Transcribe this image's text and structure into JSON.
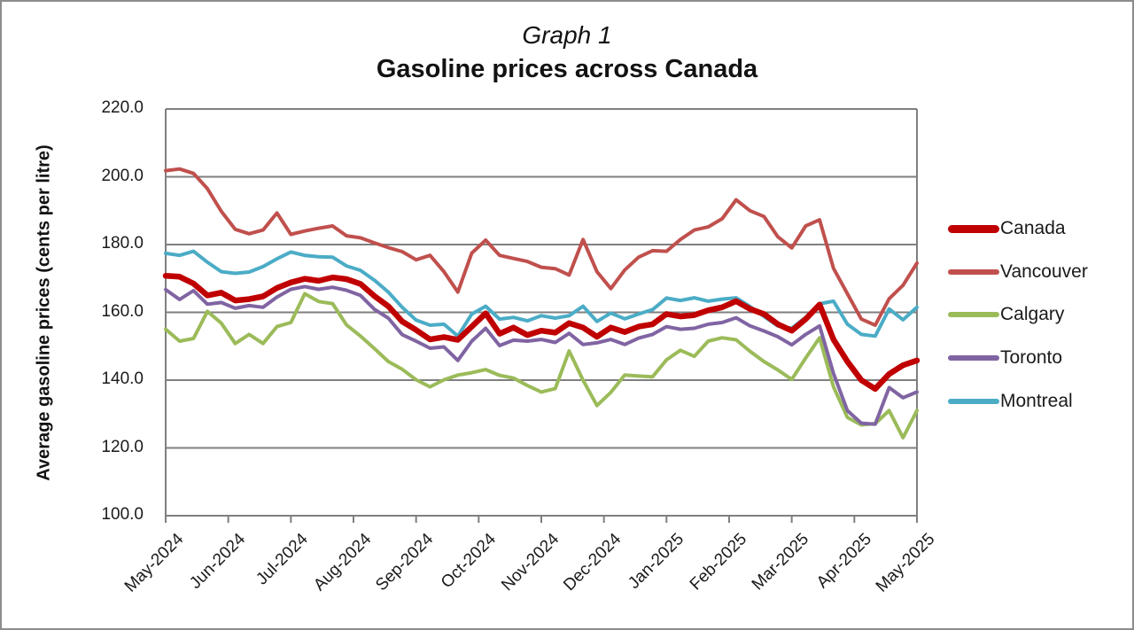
{
  "chart_data": {
    "type": "line",
    "title": "Graph 1",
    "subtitle": "Gasoline prices across Canada",
    "ylabel": "Average gasoline prices (cents per litre)",
    "xlabel": "",
    "ylim": [
      100,
      220
    ],
    "ytick_step": 20,
    "yticks": [
      "220.0",
      "200.0",
      "180.0",
      "160.0",
      "140.0",
      "120.0",
      "100.0"
    ],
    "categories": [
      "May-2024",
      "Jun-2024",
      "Jul-2024",
      "Aug-2024",
      "Sep-2024",
      "Oct-2024",
      "Nov-2024",
      "Dec-2024",
      "Jan-2025",
      "Feb-2025",
      "Mar-2025",
      "Apr-2025",
      "May-2025"
    ],
    "x_unit": "weekly samples, May 2024 through May 2025",
    "grid": true,
    "legend_position": "right",
    "gridline_color": "#7F7F7F",
    "axis_color": "#7F7F7F",
    "frame_border_color": "#8C8C8C",
    "text_color": "#1A1A1A",
    "series": [
      {
        "name": "Canada",
        "color": "#C00000",
        "line_width": 6.5,
        "values": [
          170.8,
          170.5,
          168.5,
          165.0,
          165.8,
          163.5,
          163.9,
          164.7,
          167.2,
          168.8,
          169.9,
          169.3,
          170.3,
          169.8,
          168.4,
          164.8,
          161.8,
          157.3,
          154.8,
          152.0,
          152.7,
          151.9,
          155.8,
          159.7,
          153.7,
          155.5,
          153.3,
          154.6,
          154.0,
          156.8,
          155.5,
          152.8,
          155.5,
          154.2,
          155.8,
          156.5,
          159.5,
          158.8,
          159.2,
          160.6,
          161.5,
          163.3,
          161.0,
          159.5,
          156.5,
          154.6,
          158.0,
          162.3,
          152.0,
          145.5,
          140.0,
          137.4,
          141.8,
          144.4,
          145.8
        ]
      },
      {
        "name": "Vancouver",
        "color": "#C0504D",
        "line_width": 4,
        "values": [
          201.8,
          202.3,
          201.0,
          196.5,
          189.8,
          184.5,
          183.2,
          184.3,
          189.3,
          183.0,
          184.0,
          184.8,
          185.5,
          182.6,
          182.0,
          180.5,
          179.1,
          177.9,
          175.5,
          176.8,
          172.0,
          166.0,
          177.5,
          181.3,
          176.8,
          175.9,
          175.0,
          173.3,
          172.9,
          171.0,
          181.5,
          172.0,
          167.0,
          172.5,
          176.3,
          178.2,
          178.0,
          181.5,
          184.3,
          185.2,
          187.6,
          193.2,
          190.0,
          188.3,
          182.3,
          179.0,
          185.5,
          187.3,
          173.0,
          165.5,
          158.0,
          156.2,
          164.0,
          168.0,
          174.5
        ]
      },
      {
        "name": "Calgary",
        "color": "#9BBB59",
        "line_width": 4,
        "values": [
          155.0,
          151.5,
          152.3,
          160.3,
          156.8,
          150.8,
          153.5,
          150.8,
          155.8,
          157.0,
          165.5,
          163.2,
          162.6,
          156.3,
          153.0,
          149.3,
          145.5,
          143.2,
          140.1,
          138.0,
          140.1,
          141.5,
          142.2,
          143.1,
          141.4,
          140.6,
          138.4,
          136.5,
          137.5,
          148.6,
          140.0,
          132.5,
          136.4,
          141.5,
          141.2,
          141.0,
          146.0,
          148.8,
          147.0,
          151.5,
          152.5,
          151.9,
          148.5,
          145.5,
          143.0,
          140.2,
          146.5,
          152.5,
          138.0,
          129.0,
          126.8,
          127.2,
          131.0,
          123.0,
          131.0
        ]
      },
      {
        "name": "Toronto",
        "color": "#8064A2",
        "line_width": 4,
        "values": [
          166.7,
          163.8,
          166.4,
          162.4,
          162.9,
          161.2,
          162.0,
          161.5,
          164.5,
          166.8,
          167.6,
          166.8,
          167.4,
          166.5,
          165.0,
          160.9,
          158.3,
          153.4,
          151.5,
          149.4,
          149.8,
          145.8,
          151.5,
          155.3,
          150.2,
          151.8,
          151.5,
          152.0,
          151.1,
          153.8,
          150.5,
          151.0,
          152.0,
          150.5,
          152.4,
          153.5,
          155.8,
          155.0,
          155.3,
          156.5,
          157.0,
          158.4,
          156.0,
          154.5,
          152.8,
          150.4,
          153.5,
          156.0,
          142.0,
          131.0,
          127.3,
          127.0,
          137.8,
          134.8,
          136.5
        ]
      },
      {
        "name": "Montreal",
        "color": "#4BACC6",
        "line_width": 4,
        "values": [
          177.4,
          176.8,
          178.0,
          174.8,
          172.0,
          171.5,
          171.9,
          173.5,
          175.8,
          177.8,
          176.8,
          176.4,
          176.3,
          173.7,
          172.4,
          169.5,
          166.0,
          161.5,
          157.7,
          156.2,
          156.5,
          153.0,
          159.5,
          161.8,
          158.0,
          158.5,
          157.5,
          159.0,
          158.3,
          159.0,
          161.8,
          157.3,
          159.8,
          158.1,
          159.5,
          160.8,
          164.2,
          163.5,
          164.3,
          163.3,
          163.9,
          164.3,
          161.7,
          158.8,
          156.0,
          155.3,
          158.5,
          162.5,
          163.3,
          156.5,
          153.5,
          153.0,
          161.0,
          157.8,
          161.5
        ]
      }
    ]
  }
}
